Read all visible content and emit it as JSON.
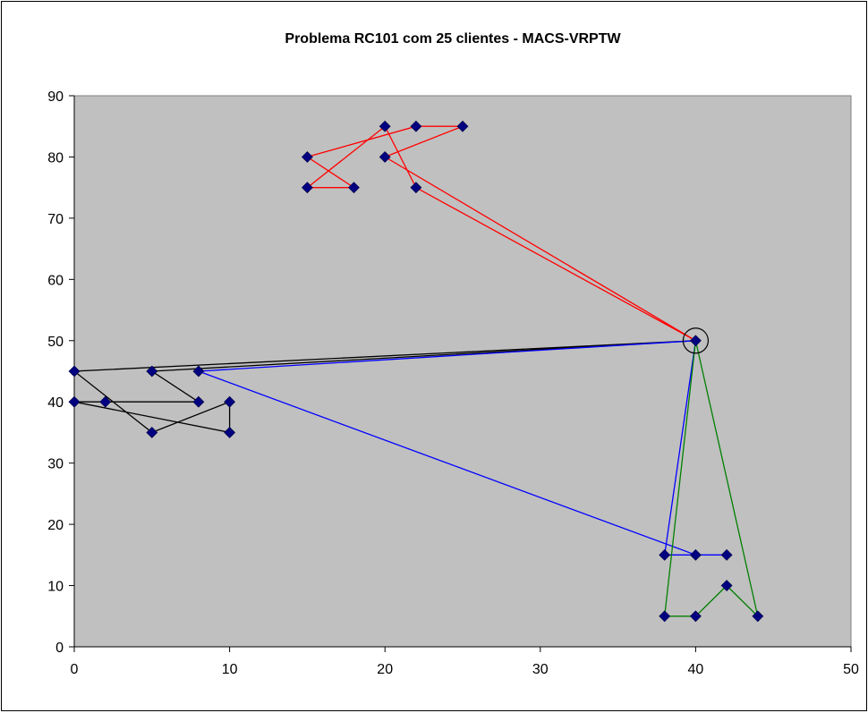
{
  "chart_data": {
    "type": "scatter",
    "title": "Problema RC101 com 25 clientes - MACS-VRPTW",
    "xlabel": "",
    "ylabel": "",
    "xlim": [
      0,
      50
    ],
    "ylim": [
      0,
      90
    ],
    "x_ticks": [
      0,
      10,
      20,
      30,
      40,
      50
    ],
    "y_ticks": [
      0,
      10,
      20,
      30,
      40,
      50,
      60,
      70,
      80,
      90
    ],
    "grid": false,
    "legend": "none",
    "plot_background": "#c0c0c0",
    "marker_color": "#000080",
    "depot": [
      40,
      50
    ],
    "series": [
      {
        "color": "#ff0000",
        "points": [
          [
            40,
            50
          ],
          [
            22,
            75
          ],
          [
            20,
            85
          ],
          [
            15,
            75
          ],
          [
            18,
            75
          ],
          [
            15,
            80
          ],
          [
            22,
            85
          ],
          [
            25,
            85
          ],
          [
            20,
            80
          ],
          [
            40,
            50
          ]
        ]
      },
      {
        "color": "#000000",
        "points": [
          [
            40,
            50
          ],
          [
            0,
            45
          ],
          [
            5,
            35
          ],
          [
            10,
            40
          ],
          [
            10,
            35
          ],
          [
            0,
            40
          ],
          [
            2,
            40
          ],
          [
            8,
            40
          ],
          [
            5,
            45
          ],
          [
            40,
            50
          ]
        ]
      },
      {
        "color": "#0000ff",
        "points": [
          [
            40,
            50
          ],
          [
            8,
            45
          ],
          [
            40,
            15
          ],
          [
            42,
            15
          ],
          [
            38,
            15
          ],
          [
            40,
            50
          ]
        ]
      },
      {
        "color": "#008000",
        "points": [
          [
            40,
            50
          ],
          [
            38,
            5
          ],
          [
            40,
            5
          ],
          [
            42,
            10
          ],
          [
            44,
            5
          ],
          [
            40,
            50
          ]
        ]
      }
    ]
  }
}
